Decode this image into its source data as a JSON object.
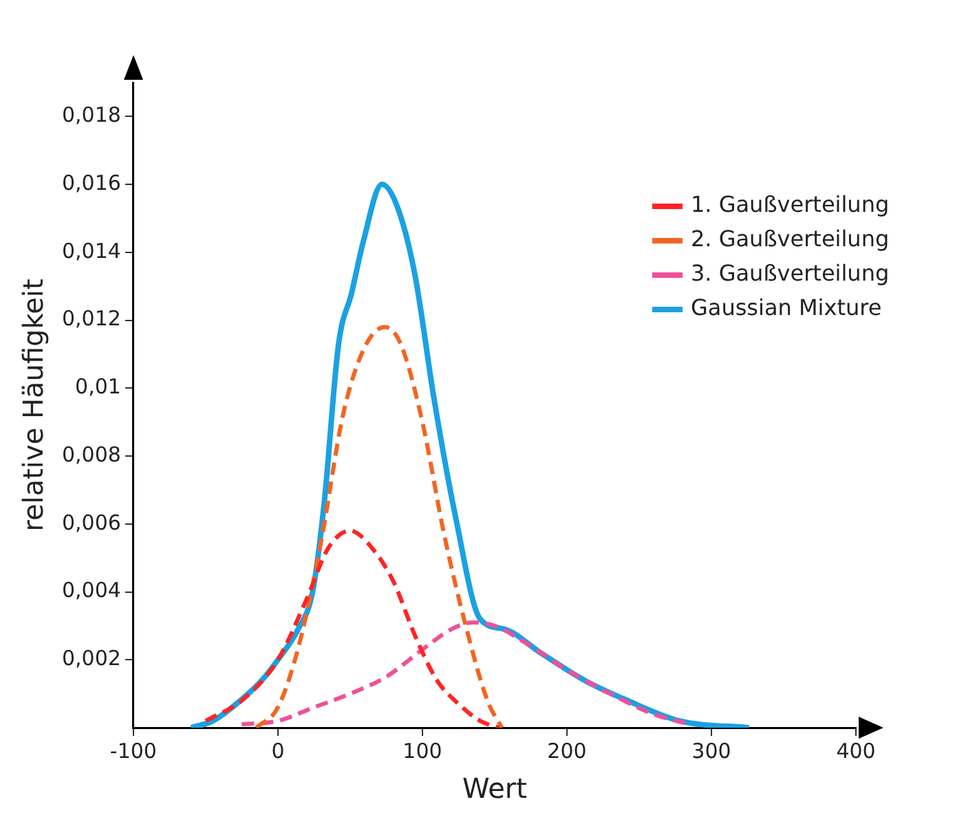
{
  "chart_data": {
    "type": "line",
    "xlabel": "Wert",
    "ylabel": "relative Häufigkeit",
    "xlim": [
      -100,
      400
    ],
    "xticks": [
      -100,
      0,
      100,
      200,
      300,
      400
    ],
    "ylim": [
      0,
      0.019
    ],
    "yticks": [
      {
        "value": 0.002,
        "label": "0,002"
      },
      {
        "value": 0.004,
        "label": "0,004"
      },
      {
        "value": 0.006,
        "label": "0,006"
      },
      {
        "value": 0.008,
        "label": "0,008"
      },
      {
        "value": 0.01,
        "label": "0,01"
      },
      {
        "value": 0.012,
        "label": "0,012"
      },
      {
        "value": 0.014,
        "label": "0,014"
      },
      {
        "value": 0.016,
        "label": "0,016"
      },
      {
        "value": 0.018,
        "label": "0,018"
      }
    ],
    "grid": false,
    "legend": "top right",
    "marker": "none",
    "series": [
      {
        "name": "1. Gaußverteilung",
        "color": "#ff2424",
        "line_style": "dashed",
        "x": [
          -50,
          -25,
          0,
          20,
          35,
          50,
          65,
          80,
          95,
          110,
          125,
          140,
          153
        ],
        "values": [
          0.0002,
          0.0008,
          0.002,
          0.0038,
          0.0053,
          0.0058,
          0.0053,
          0.0043,
          0.0027,
          0.0014,
          0.0007,
          0.0002,
          0
        ]
      },
      {
        "name": "2. Gaußverteilung",
        "color": "#f26522",
        "line_style": "dashed",
        "x": [
          -15,
          0,
          15,
          30,
          45,
          60,
          74,
          85,
          100,
          115,
          130,
          145,
          155
        ],
        "values": [
          0,
          0.0006,
          0.0025,
          0.0055,
          0.0092,
          0.0112,
          0.0118,
          0.0113,
          0.009,
          0.0057,
          0.003,
          0.0008,
          0
        ]
      },
      {
        "name": "3. Gaußverteilung",
        "color": "#f0509a",
        "line_style": "dashed",
        "x": [
          -25,
          0,
          25,
          50,
          75,
          100,
          120,
          135,
          150,
          175,
          200,
          230,
          260,
          285
        ],
        "values": [
          0.0001,
          0.0002,
          0.0006,
          0.001,
          0.0015,
          0.0023,
          0.0029,
          0.0031,
          0.003,
          0.0024,
          0.0017,
          0.001,
          0.0004,
          0.0001
        ]
      },
      {
        "name": "Gaussian Mixture",
        "color": "#1ba1e2",
        "line_style": "solid",
        "x": [
          -60,
          -45,
          -26,
          -11,
          0,
          14,
          24,
          32,
          42,
          51,
          59,
          72,
          83,
          95,
          108,
          123,
          140,
          157,
          182,
          212,
          242,
          278,
          326
        ],
        "values": [
          0,
          0.0002,
          0.0008,
          0.0014,
          0.002,
          0.0029,
          0.004,
          0.0066,
          0.0113,
          0.0128,
          0.0143,
          0.016,
          0.0153,
          0.0133,
          0.0097,
          0.0062,
          0.0032,
          0.0029,
          0.0022,
          0.0014,
          0.0008,
          0.0002,
          0
        ]
      }
    ]
  }
}
